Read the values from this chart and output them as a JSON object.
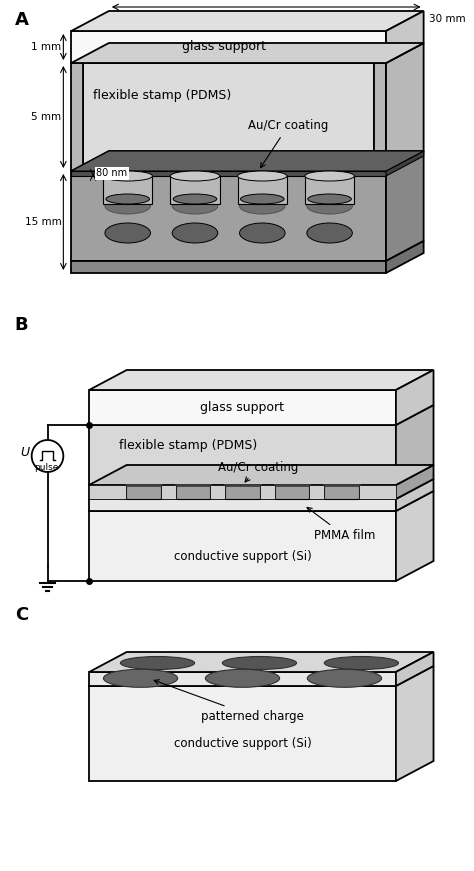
{
  "bg": "#ffffff",
  "lc": "#000000",
  "white": "#ffffff",
  "glass_face": "#f8f8f8",
  "glass_top": "#e0e0e0",
  "glass_side": "#c8c8c8",
  "pdms_face": "#e0e0e0",
  "pdms_top": "#d0d0d0",
  "pdms_side": "#b8b8b8",
  "pdms_inner": "#dcdcdc",
  "stamp_face": "#a0a0a0",
  "stamp_top": "#c0c0c0",
  "stamp_side": "#888888",
  "dark_coat": "#505050",
  "recess_face": "#c8c8c8",
  "oval_dark": "#606060",
  "si_face": "#f0f0f0",
  "si_top": "#e0e0e0",
  "si_side": "#d0d0d0",
  "pmma_face": "#e8e8e8",
  "pmma_side": "#d0d0d0",
  "charge_dark": "#555555",
  "label_A": "A",
  "label_B": "B",
  "label_C": "C",
  "text_glass": "glass support",
  "text_pdms": "flexible stamp (PDMS)",
  "text_aucr": "Au/Cr coating",
  "text_1mm": "1 mm",
  "text_5mm": "5 mm",
  "text_80nm": "80 nm",
  "text_15mm": "15 mm",
  "text_30mm": "30 mm",
  "text_pmma": "PMMA film",
  "text_conductive": "conductive support (Si)",
  "text_patterned": "patterned charge",
  "text_U": "U",
  "text_pulse": "pulse"
}
